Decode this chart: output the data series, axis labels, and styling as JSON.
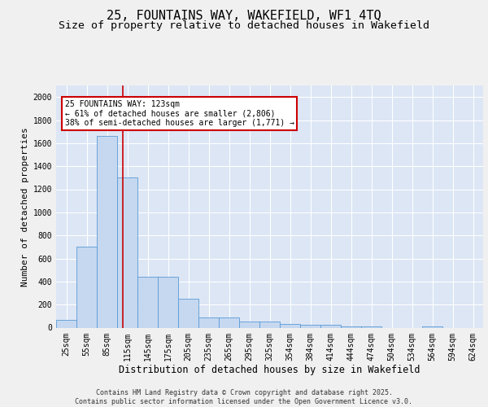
{
  "title_line1": "25, FOUNTAINS WAY, WAKEFIELD, WF1 4TQ",
  "title_line2": "Size of property relative to detached houses in Wakefield",
  "xlabel": "Distribution of detached houses by size in Wakefield",
  "ylabel": "Number of detached properties",
  "footer_line1": "Contains HM Land Registry data © Crown copyright and database right 2025.",
  "footer_line2": "Contains public sector information licensed under the Open Government Licence v3.0.",
  "bar_fill_color": "#c5d8f0",
  "bar_edge_color": "#5b9bd5",
  "figure_bg_color": "#f0f0f0",
  "plot_bg_color": "#dce6f5",
  "grid_color": "#ffffff",
  "categories": [
    "25sqm",
    "55sqm",
    "85sqm",
    "115sqm",
    "145sqm",
    "175sqm",
    "205sqm",
    "235sqm",
    "265sqm",
    "295sqm",
    "325sqm",
    "354sqm",
    "384sqm",
    "414sqm",
    "444sqm",
    "474sqm",
    "504sqm",
    "534sqm",
    "564sqm",
    "594sqm",
    "624sqm"
  ],
  "values": [
    65,
    700,
    1660,
    1300,
    440,
    440,
    250,
    90,
    90,
    50,
    50,
    30,
    25,
    25,
    10,
    10,
    0,
    0,
    10,
    0,
    0
  ],
  "ylim": [
    0,
    2100
  ],
  "yticks": [
    0,
    200,
    400,
    600,
    800,
    1000,
    1200,
    1400,
    1600,
    1800,
    2000
  ],
  "property_size_sqm": 123,
  "property_label": "25 FOUNTAINS WAY: 123sqm",
  "annotation_line2": "← 61% of detached houses are smaller (2,806)",
  "annotation_line3": "38% of semi-detached houses are larger (1,771) →",
  "red_line_color": "#cc0000",
  "annotation_box_edgecolor": "#cc0000",
  "title_fontsize": 11,
  "subtitle_fontsize": 9.5,
  "ylabel_fontsize": 8,
  "xlabel_fontsize": 8.5,
  "tick_fontsize": 7,
  "annotation_fontsize": 7,
  "footer_fontsize": 6
}
